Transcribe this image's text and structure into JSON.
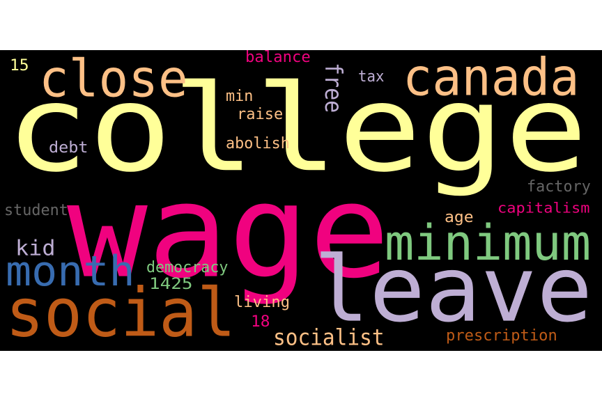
{
  "wordcloud": {
    "words": [
      {
        "text": "college",
        "color": "#ffff99"
      },
      {
        "text": "wage",
        "color": "#f0027f"
      },
      {
        "text": "leave",
        "color": "#beaed4"
      },
      {
        "text": "social",
        "color": "#bf5b17"
      },
      {
        "text": "canada",
        "color": "#fdc086"
      },
      {
        "text": "close",
        "color": "#fdc086"
      },
      {
        "text": "minimum",
        "color": "#7fc97f"
      },
      {
        "text": "month",
        "color": "#386cb0"
      },
      {
        "text": "socialist",
        "color": "#fdc086"
      },
      {
        "text": "free",
        "color": "#beaed4"
      },
      {
        "text": "kid",
        "color": "#beaed4"
      },
      {
        "text": "democracy",
        "color": "#7fc97f"
      },
      {
        "text": "capitalism",
        "color": "#f0027f"
      },
      {
        "text": "prescription",
        "color": "#bf5b17"
      },
      {
        "text": "factory",
        "color": "#666666"
      },
      {
        "text": "student",
        "color": "#666666"
      },
      {
        "text": "abolish",
        "color": "#fdc086"
      },
      {
        "text": "raise",
        "color": "#fdc086"
      },
      {
        "text": "balance",
        "color": "#f0027f"
      },
      {
        "text": "living",
        "color": "#fdc086"
      },
      {
        "text": "tax",
        "color": "#beaed4"
      },
      {
        "text": "debt",
        "color": "#beaed4"
      },
      {
        "text": "min",
        "color": "#fdc086"
      },
      {
        "text": "age",
        "color": "#fdc086"
      },
      {
        "text": "1425",
        "color": "#7fc97f"
      },
      {
        "text": "15",
        "color": "#ffff99"
      },
      {
        "text": "18",
        "color": "#f0027f"
      }
    ]
  }
}
